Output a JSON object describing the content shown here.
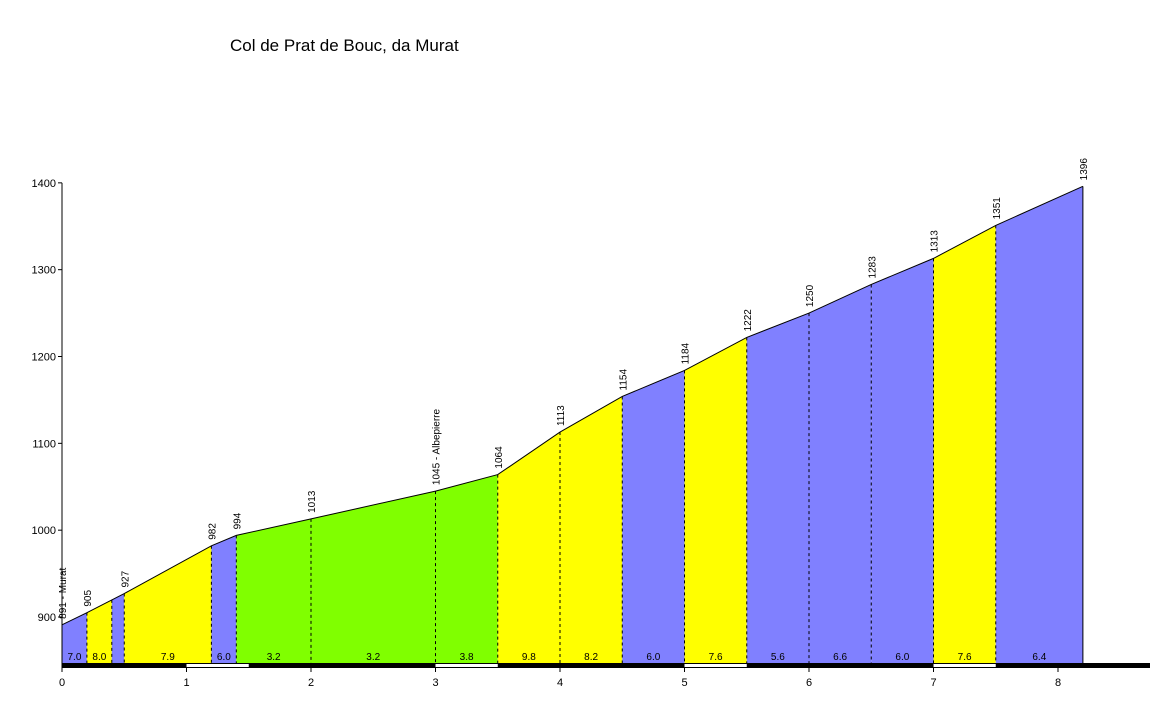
{
  "chart_data": {
    "type": "area",
    "title": "Col de Prat de Bouc, da Murat",
    "xlabel": "",
    "ylabel": "",
    "xlim": [
      0,
      8.6
    ],
    "ylim": [
      842,
      1400
    ],
    "yticks": [
      900,
      1000,
      1100,
      1200,
      1300,
      1400
    ],
    "xticks": [
      0,
      1,
      2,
      3,
      4,
      5,
      6,
      7,
      8
    ],
    "colors": {
      "yellow": "#ffff00",
      "blue": "#8080ff",
      "green": "#80ff00"
    },
    "points": [
      {
        "x": 0.0,
        "y": 891,
        "label": "891 - Murat"
      },
      {
        "x": 0.2,
        "y": 905,
        "label": "905"
      },
      {
        "x": 0.5,
        "y": 927,
        "label": "927"
      },
      {
        "x": 1.2,
        "y": 982,
        "label": "982"
      },
      {
        "x": 1.4,
        "y": 994,
        "label": "994"
      },
      {
        "x": 2.0,
        "y": 1013,
        "label": "1013"
      },
      {
        "x": 3.0,
        "y": 1045,
        "label": "1045 - Albepierre"
      },
      {
        "x": 3.5,
        "y": 1064,
        "label": "1064"
      },
      {
        "x": 4.0,
        "y": 1113,
        "label": "1113"
      },
      {
        "x": 4.5,
        "y": 1154,
        "label": "1154"
      },
      {
        "x": 5.0,
        "y": 1184,
        "label": "1184"
      },
      {
        "x": 5.5,
        "y": 1222,
        "label": "1222"
      },
      {
        "x": 6.0,
        "y": 1250,
        "label": "1250"
      },
      {
        "x": 6.5,
        "y": 1283,
        "label": "1283"
      },
      {
        "x": 7.0,
        "y": 1313,
        "label": "1313"
      },
      {
        "x": 7.5,
        "y": 1351,
        "label": "1351"
      },
      {
        "x": 8.2,
        "y": 1396,
        "label": "1396"
      }
    ],
    "segments": [
      {
        "from": 0.0,
        "to": 0.2,
        "gradient": "7.0",
        "color": "blue"
      },
      {
        "from": 0.2,
        "to": 0.4,
        "gradient": "8.0",
        "color": "yellow"
      },
      {
        "from": 0.4,
        "to": 0.5,
        "gradient": "",
        "color": "blue"
      },
      {
        "from": 0.5,
        "to": 1.2,
        "gradient": "7.9",
        "color": "yellow"
      },
      {
        "from": 1.2,
        "to": 1.4,
        "gradient": "6.0",
        "color": "blue"
      },
      {
        "from": 1.4,
        "to": 2.0,
        "gradient": "3.2",
        "color": "green"
      },
      {
        "from": 2.0,
        "to": 3.0,
        "gradient": "3.2",
        "color": "green"
      },
      {
        "from": 3.0,
        "to": 3.5,
        "gradient": "3.8",
        "color": "green"
      },
      {
        "from": 3.5,
        "to": 4.0,
        "gradient": "9.8",
        "color": "yellow"
      },
      {
        "from": 4.0,
        "to": 4.5,
        "gradient": "8.2",
        "color": "yellow"
      },
      {
        "from": 4.5,
        "to": 5.0,
        "gradient": "6.0",
        "color": "blue"
      },
      {
        "from": 5.0,
        "to": 5.5,
        "gradient": "7.6",
        "color": "yellow"
      },
      {
        "from": 5.5,
        "to": 6.0,
        "gradient": "5.6",
        "color": "blue"
      },
      {
        "from": 6.0,
        "to": 6.5,
        "gradient": "6.6",
        "color": "blue"
      },
      {
        "from": 6.5,
        "to": 7.0,
        "gradient": "6.0",
        "color": "blue"
      },
      {
        "from": 7.0,
        "to": 7.5,
        "gradient": "7.6",
        "color": "yellow"
      },
      {
        "from": 7.5,
        "to": 8.2,
        "gradient": "6.4",
        "color": "blue"
      }
    ],
    "dividers": [
      0.2,
      0.4,
      0.5,
      1.2,
      1.4,
      2.0,
      3.0,
      3.5,
      4.0,
      4.5,
      5.0,
      5.5,
      6.0,
      6.5,
      7.0,
      7.5
    ]
  }
}
